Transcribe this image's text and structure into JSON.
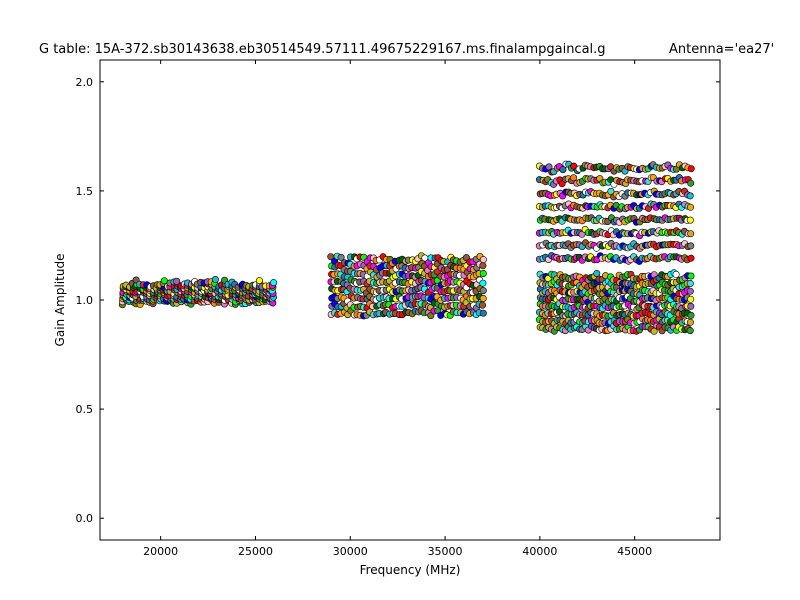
{
  "chart_data": {
    "type": "scatter",
    "title": "G table: 15A-372.sb30143638.eb30514549.57111.49675229167.ms.finalampgaincal.g",
    "subtitle": "Antenna='ea27'",
    "xlabel": "Frequency (MHz)",
    "ylabel": "Gain Amplitude",
    "xlim": [
      16800,
      49500
    ],
    "ylim": [
      -0.1,
      2.1
    ],
    "xticks": [
      20000,
      25000,
      30000,
      35000,
      40000,
      45000
    ],
    "yticks": [
      0.0,
      0.5,
      1.0,
      1.5,
      2.0
    ],
    "xtick_labels": [
      "20000",
      "25000",
      "30000",
      "35000",
      "40000",
      "45000"
    ],
    "ytick_labels": [
      "0.0",
      "0.5",
      "1.0",
      "1.5",
      "2.0"
    ],
    "grid": false,
    "legend": "none",
    "marker_edge_color": "#000000",
    "palette": [
      "#1f77b4",
      "#ff7f0e",
      "#2ca02c",
      "#d62728",
      "#9467bd",
      "#8c564b",
      "#e377c2",
      "#7f7f7f",
      "#bcbd22",
      "#17becf",
      "#00ffff",
      "#ff00ff",
      "#ffff00",
      "#00ff00",
      "#0000ff",
      "#ff0000",
      "#ffa500",
      "#808000",
      "#ffc0cb",
      "#40e0d0",
      "#a0522d",
      "#006400",
      "#daa520",
      "#ffffff"
    ],
    "series": [
      {
        "x_start": 18000,
        "x_end": 26000,
        "x_step": 180,
        "y_ranges": [
          [
            0.98,
            1.09
          ]
        ]
      },
      {
        "x_start": 29000,
        "x_end": 37000,
        "x_step": 170,
        "y_ranges": [
          [
            0.93,
            1.2
          ]
        ]
      },
      {
        "x_start": 40000,
        "x_end": 48000,
        "x_step": 150,
        "y_ranges": [
          [
            0.86,
            1.12
          ],
          [
            1.18,
            1.62
          ]
        ]
      }
    ]
  }
}
